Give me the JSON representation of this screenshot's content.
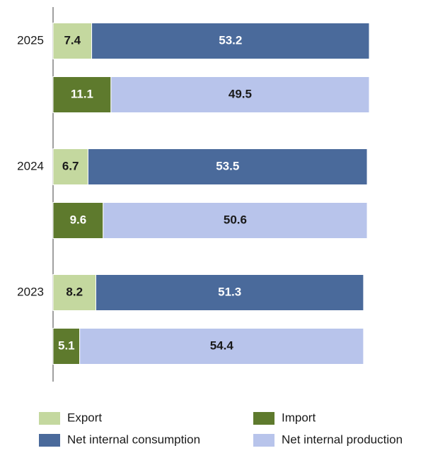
{
  "chart_data": {
    "type": "grouped-stacked-bar",
    "categories": [
      "2025",
      "2024",
      "2023"
    ],
    "groups": [
      {
        "series": [
          {
            "name": "Export",
            "color": "#c4d89f",
            "label_color": "#1a1a1a",
            "values": [
              7.4,
              6.7,
              8.2
            ]
          },
          {
            "name": "Net internal consumption",
            "color": "#4a6a9b",
            "label_color": "#ffffff",
            "values": [
              53.2,
              53.5,
              51.3
            ]
          }
        ]
      },
      {
        "series": [
          {
            "name": "Import",
            "color": "#5e7a2d",
            "label_color": "#ffffff",
            "values": [
              11.1,
              9.6,
              5.1
            ]
          },
          {
            "name": "Net internal production",
            "color": "#b8c4eb",
            "label_color": "#1a1a1a",
            "values": [
              49.5,
              50.6,
              54.4
            ]
          }
        ]
      }
    ]
  }
}
